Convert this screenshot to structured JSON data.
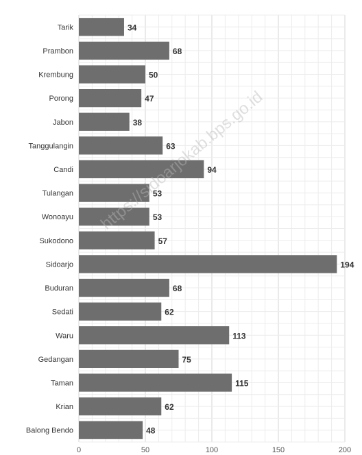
{
  "watermark": "https://sidoarjokab.bps.go.id",
  "chart_data": {
    "type": "bar",
    "orientation": "horizontal",
    "categories": [
      "Tarik",
      "Prambon",
      "Krembung",
      "Porong",
      "Jabon",
      "Tanggulangin",
      "Candi",
      "Tulangan",
      "Wonoayu",
      "Sukodono",
      "Sidoarjo",
      "Buduran",
      "Sedati",
      "Waru",
      "Gedangan",
      "Taman",
      "Krian",
      "Balong Bendo"
    ],
    "values": [
      34,
      68,
      50,
      47,
      38,
      63,
      94,
      53,
      53,
      57,
      194,
      68,
      62,
      113,
      75,
      115,
      62,
      48
    ],
    "xlim": [
      0,
      200
    ],
    "xticks": [
      0,
      50,
      100,
      150,
      200
    ],
    "grid": true,
    "bar_color": "#6e6e6e",
    "title": "",
    "xlabel": "",
    "ylabel": ""
  }
}
